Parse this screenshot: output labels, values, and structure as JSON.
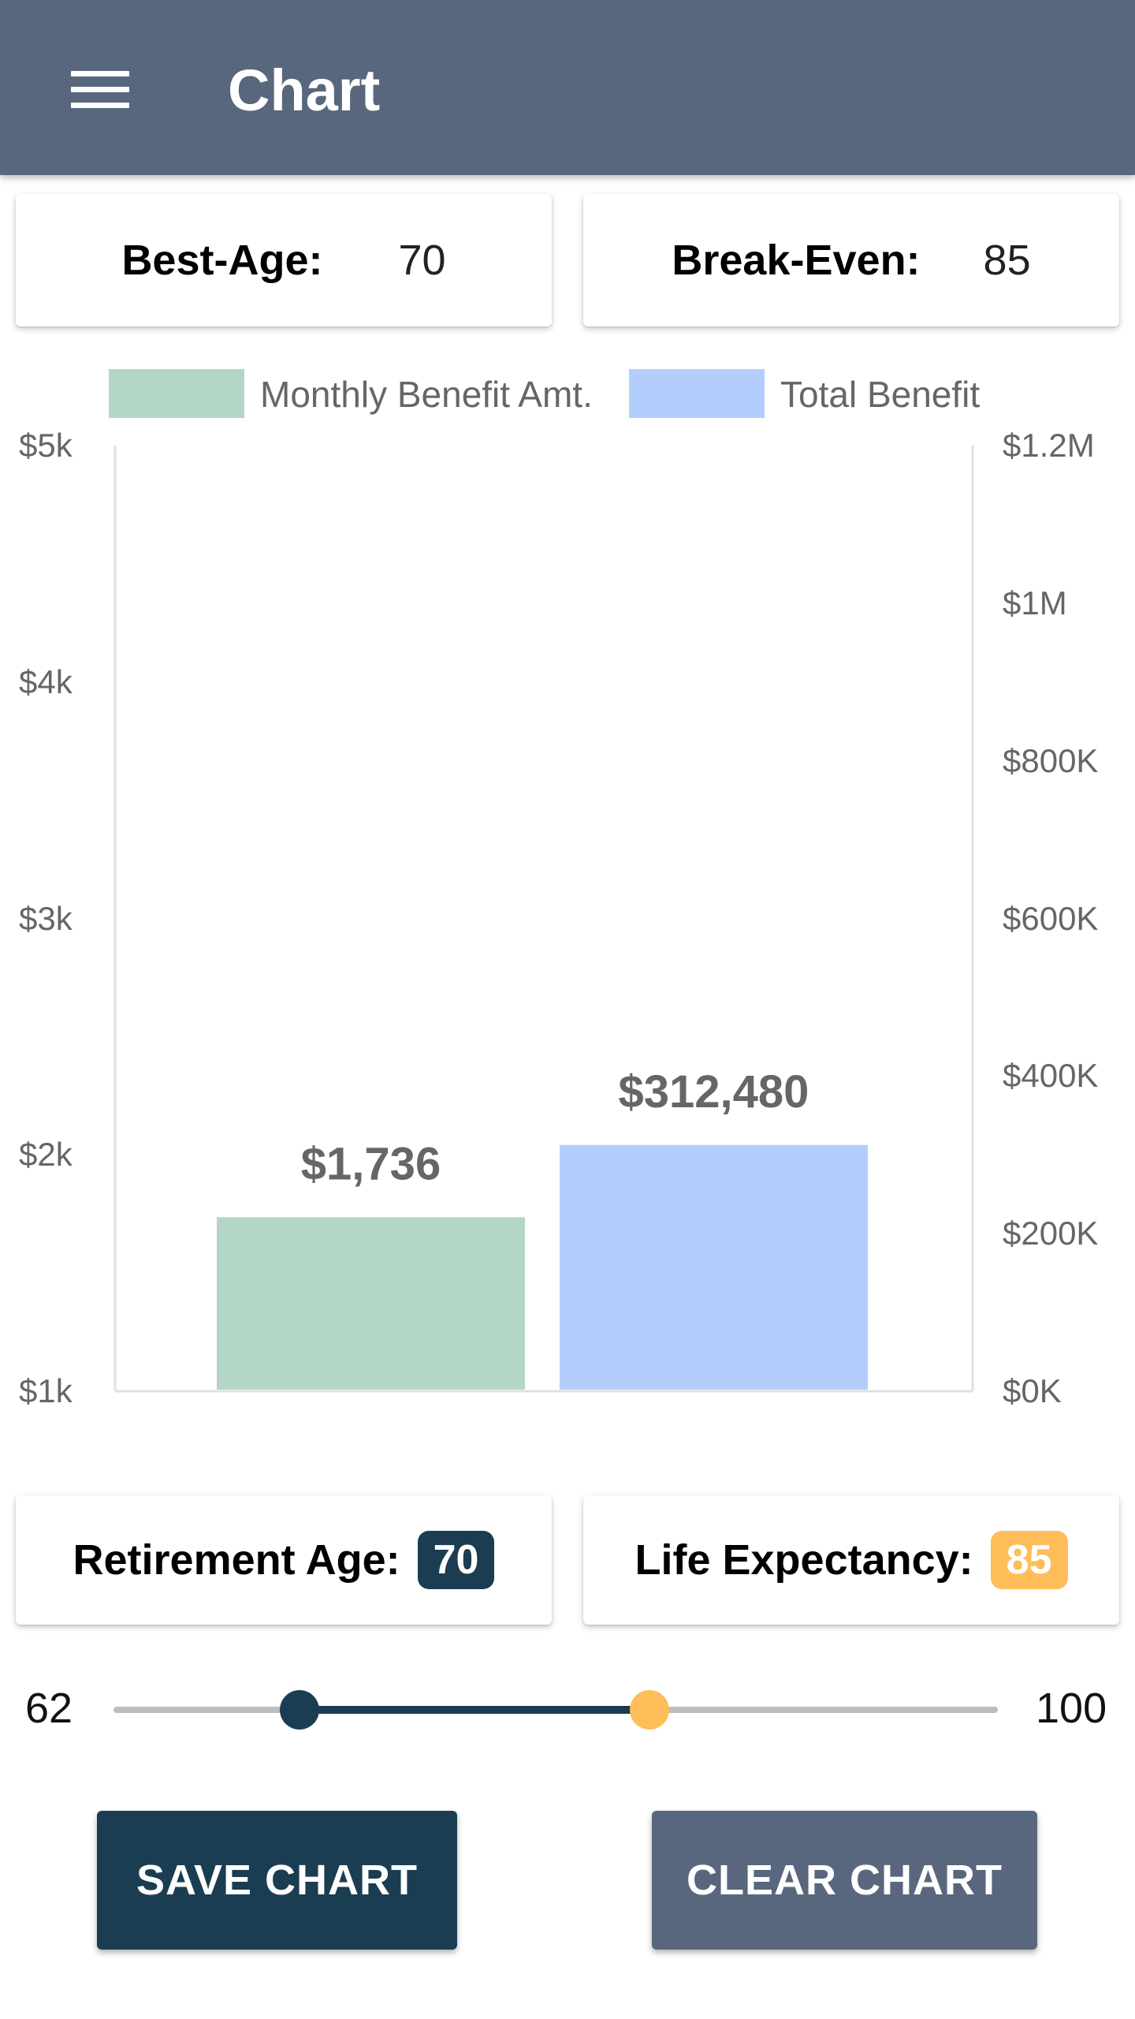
{
  "app_bar": {
    "title": "Chart",
    "menu_icon": "menu-icon"
  },
  "summary": {
    "best_age_label": "Best-Age:",
    "best_age_value": "70",
    "break_even_label": "Break-Even:",
    "break_even_value": "85"
  },
  "chart_data": {
    "type": "bar",
    "series": [
      {
        "name": "Monthly Benefit Amt.",
        "value": 1736,
        "label": "$1,736",
        "color": "#b3d6c6",
        "axis": "left"
      },
      {
        "name": "Total Benefit",
        "value": 312480,
        "label": "$312,480",
        "color": "#b3cdfd",
        "axis": "right"
      }
    ],
    "left_axis": {
      "range": [
        1000,
        5000
      ],
      "ticks": [
        "$5k",
        "$4k",
        "$3k",
        "$2k",
        "$1k"
      ]
    },
    "right_axis": {
      "range": [
        0,
        1200000
      ],
      "ticks": [
        "$1.2M",
        "$1M",
        "$800K",
        "$600K",
        "$400K",
        "$200K",
        "$0K"
      ]
    },
    "legend_position": "top"
  },
  "controls": {
    "retirement_age_label": "Retirement Age:",
    "retirement_age_value": "70",
    "retirement_color": "#1b3d52",
    "life_expectancy_label": "Life Expectancy:",
    "life_expectancy_value": "85",
    "life_color": "#ffbd59",
    "slider_min": "62",
    "slider_max": "100"
  },
  "buttons": {
    "save_label": "SAVE CHART",
    "save_color": "#1b3d52",
    "clear_label": "CLEAR CHART",
    "clear_color": "#58677d"
  }
}
